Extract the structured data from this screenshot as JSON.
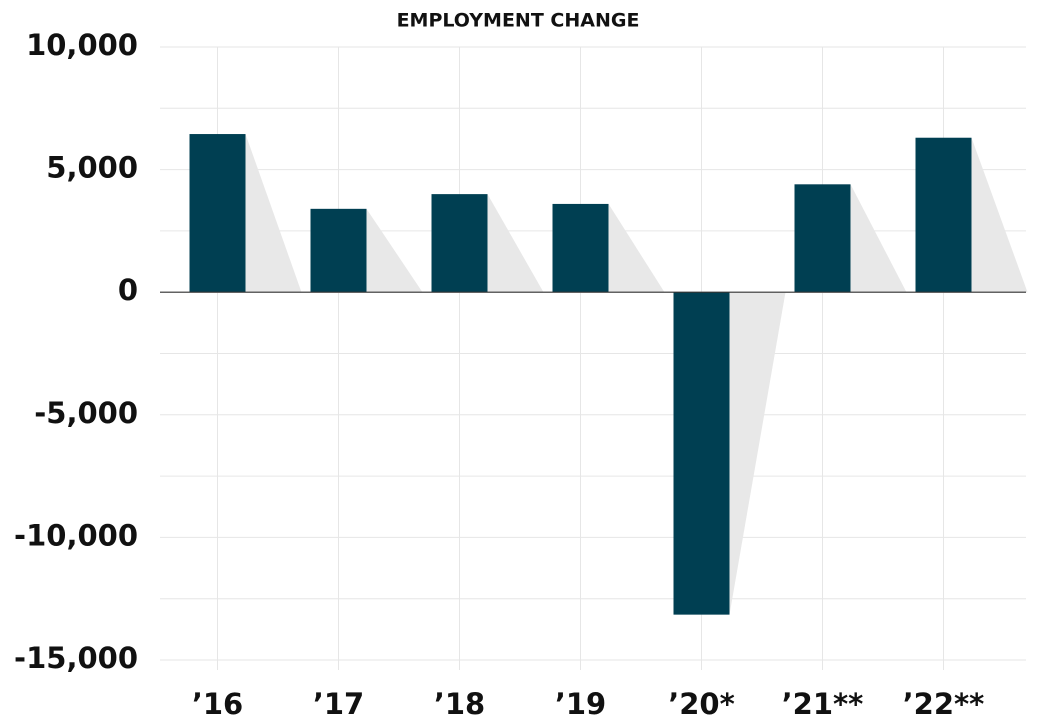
{
  "chart_data": {
    "type": "bar",
    "title": "EMPLOYMENT CHANGE",
    "categories": [
      "’16",
      "’17",
      "’18",
      "’19",
      "’20*",
      "’21**",
      "’22**"
    ],
    "values": [
      6450,
      3400,
      4000,
      3600,
      -13150,
      4400,
      6300
    ],
    "color": "#003f52",
    "shadow_color": "#e8e8e8",
    "ylim": [
      -15000,
      10000
    ],
    "yticks": [
      {
        "value": -15000,
        "label": "-15,000"
      },
      {
        "value": -10000,
        "label": "-10,000"
      },
      {
        "value": -5000,
        "label": "-5,000"
      },
      0,
      {
        "value": 5000,
        "label": "5,000"
      },
      {
        "value": 10000,
        "label": "10,000"
      }
    ],
    "minor_yticks": [
      -12500,
      -7500,
      -2500,
      2500,
      7500
    ],
    "grid": true
  }
}
